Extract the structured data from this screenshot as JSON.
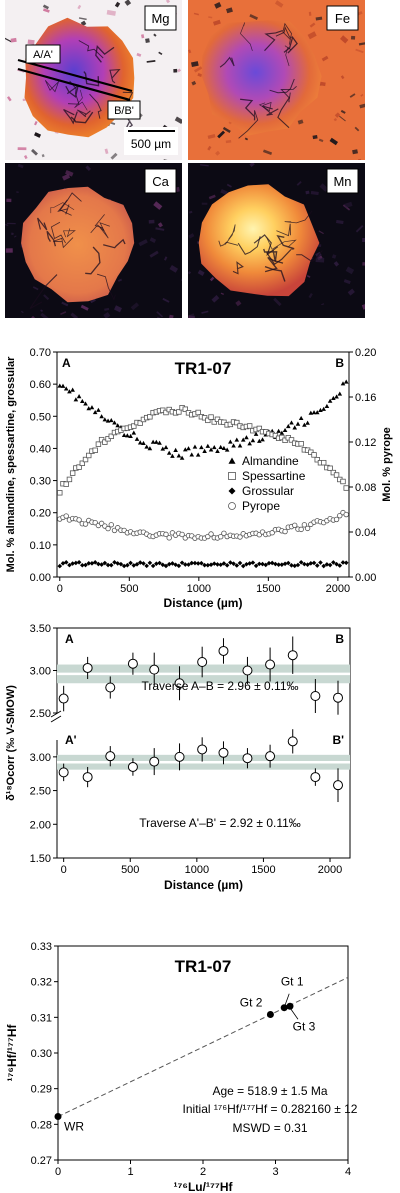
{
  "maps": {
    "panels": [
      {
        "label": "Mg",
        "style": "mg"
      },
      {
        "label": "Fe",
        "style": "fe"
      },
      {
        "label": "Ca",
        "style": "ca"
      },
      {
        "label": "Mn",
        "style": "mn"
      }
    ],
    "traverse_labels": [
      "A/A'",
      "B/B'"
    ],
    "scale_bar_label": "500 µm"
  },
  "chart_data": [
    {
      "type": "scatter",
      "title": "TR1-07",
      "corner_labels": {
        "left": "A",
        "right": "B"
      },
      "xlabel": "Distance (µm)",
      "ylabel": "Mol. % almandine, spessartine, grossular",
      "y2label": "Mol. % pyrope",
      "xlim": [
        -20,
        2080
      ],
      "ylim": [
        0,
        0.7
      ],
      "y2lim": [
        0,
        0.2
      ],
      "xticks": [
        0,
        500,
        1000,
        1500,
        2000
      ],
      "yticks": [
        "0.00",
        "0.10",
        "0.20",
        "0.30",
        "0.40",
        "0.50",
        "0.60",
        "0.70"
      ],
      "y2ticks": [
        "0.00",
        "0.04",
        "0.08",
        "0.12",
        "0.16",
        "0.20"
      ],
      "legend_position": "center-right",
      "series": [
        {
          "name": "Almandine",
          "marker": "triangle",
          "axis": "left",
          "profile": [
            [
              0,
              0.61
            ],
            [
              200,
              0.53
            ],
            [
              500,
              0.44
            ],
            [
              850,
              0.38
            ],
            [
              1200,
              0.41
            ],
            [
              1600,
              0.45
            ],
            [
              1900,
              0.52
            ],
            [
              2060,
              0.6
            ]
          ],
          "noise": 0.015
        },
        {
          "name": "Spessartine",
          "marker": "square",
          "axis": "left",
          "profile": [
            [
              0,
              0.27
            ],
            [
              150,
              0.35
            ],
            [
              300,
              0.42
            ],
            [
              500,
              0.47
            ],
            [
              700,
              0.51
            ],
            [
              900,
              0.52
            ],
            [
              1100,
              0.49
            ],
            [
              1300,
              0.47
            ],
            [
              1500,
              0.45
            ],
            [
              1700,
              0.42
            ],
            [
              1900,
              0.35
            ],
            [
              2060,
              0.28
            ]
          ],
          "noise": 0.008
        },
        {
          "name": "Grossular",
          "marker": "diamond",
          "axis": "left",
          "profile": [
            [
              0,
              0.04
            ],
            [
              2060,
              0.04
            ]
          ],
          "noise": 0.006
        },
        {
          "name": "Pyrope",
          "marker": "circle",
          "axis": "right",
          "profile": [
            [
              0,
              0.054
            ],
            [
              300,
              0.046
            ],
            [
              600,
              0.038
            ],
            [
              1000,
              0.036
            ],
            [
              1400,
              0.038
            ],
            [
              1800,
              0.046
            ],
            [
              2060,
              0.056
            ]
          ],
          "noise": 0.0025
        }
      ]
    },
    {
      "type": "scatter",
      "corner_labels": {
        "a": "A",
        "b": "B",
        "a2": "A'",
        "b2": "B'"
      },
      "xlabel": "Distance (µm)",
      "ylabel": "δ¹⁸Ocorr (‰ V-SMOW)",
      "xlim": [
        -50,
        2150
      ],
      "ylim": [
        1.5,
        3.5
      ],
      "axis_break": true,
      "xticks": [
        0,
        500,
        1000,
        1500,
        2000
      ],
      "yticks_upper": [
        "2.50",
        "3.00",
        "3.50"
      ],
      "yticks_lower": [
        "1.50",
        "2.00",
        "2.50",
        "3.00"
      ],
      "series": [
        {
          "name": "Traverse A–B",
          "annotation": "Traverse A–B = 2.96 ± 0.11‰",
          "mean": 2.96,
          "band": 0.11,
          "x": [
            0,
            180,
            350,
            520,
            680,
            870,
            1040,
            1200,
            1380,
            1550,
            1720,
            1890,
            2060
          ],
          "y": [
            2.67,
            3.03,
            2.8,
            3.08,
            3.01,
            2.85,
            3.1,
            3.23,
            3.0,
            3.07,
            3.18,
            2.7,
            2.68
          ],
          "err": [
            0.15,
            0.13,
            0.13,
            0.13,
            0.2,
            0.2,
            0.18,
            0.15,
            0.16,
            0.2,
            0.22,
            0.2,
            0.2
          ]
        },
        {
          "name": "Traverse A'–B'",
          "annotation": "Traverse A'–B' = 2.92 ± 0.11‰",
          "mean": 2.92,
          "band": 0.11,
          "x": [
            0,
            180,
            350,
            520,
            680,
            870,
            1040,
            1200,
            1380,
            1550,
            1720,
            1890,
            2060
          ],
          "y": [
            2.77,
            2.7,
            3.01,
            2.85,
            2.93,
            3.0,
            3.11,
            3.06,
            2.98,
            3.01,
            3.23,
            2.7,
            2.58
          ],
          "err": [
            0.13,
            0.15,
            0.15,
            0.13,
            0.2,
            0.2,
            0.18,
            0.17,
            0.15,
            0.17,
            0.18,
            0.13,
            0.25
          ]
        }
      ]
    },
    {
      "type": "scatter",
      "title": "TR1-07",
      "xlabel": "¹⁷⁶Lu/¹⁷⁷Hf",
      "ylabel": "¹⁷⁶Hf/¹⁷⁷Hf",
      "xlim": [
        0,
        4
      ],
      "ylim": [
        0.27,
        0.33
      ],
      "xticks": [
        "0",
        "1",
        "2",
        "3",
        "4"
      ],
      "yticks": [
        "0.27",
        "0.28",
        "0.29",
        "0.30",
        "0.31",
        "0.32",
        "0.33"
      ],
      "points": [
        {
          "label": "WR",
          "x": 0.0,
          "y": 0.2822
        },
        {
          "label": "Gt 2",
          "x": 2.93,
          "y": 0.3108
        },
        {
          "label": "Gt 1",
          "x": 3.12,
          "y": 0.3127
        },
        {
          "label": "Gt 3",
          "x": 3.2,
          "y": 0.3131
        }
      ],
      "isochron": {
        "intercept": 0.28216,
        "slope": 0.00976
      },
      "annotations": [
        "Age = 518.9 ± 1.5 Ma",
        "Initial ¹⁷⁶Hf/¹⁷⁷Hf = 0.282160 ± 12",
        "MSWD = 0.31"
      ]
    }
  ]
}
